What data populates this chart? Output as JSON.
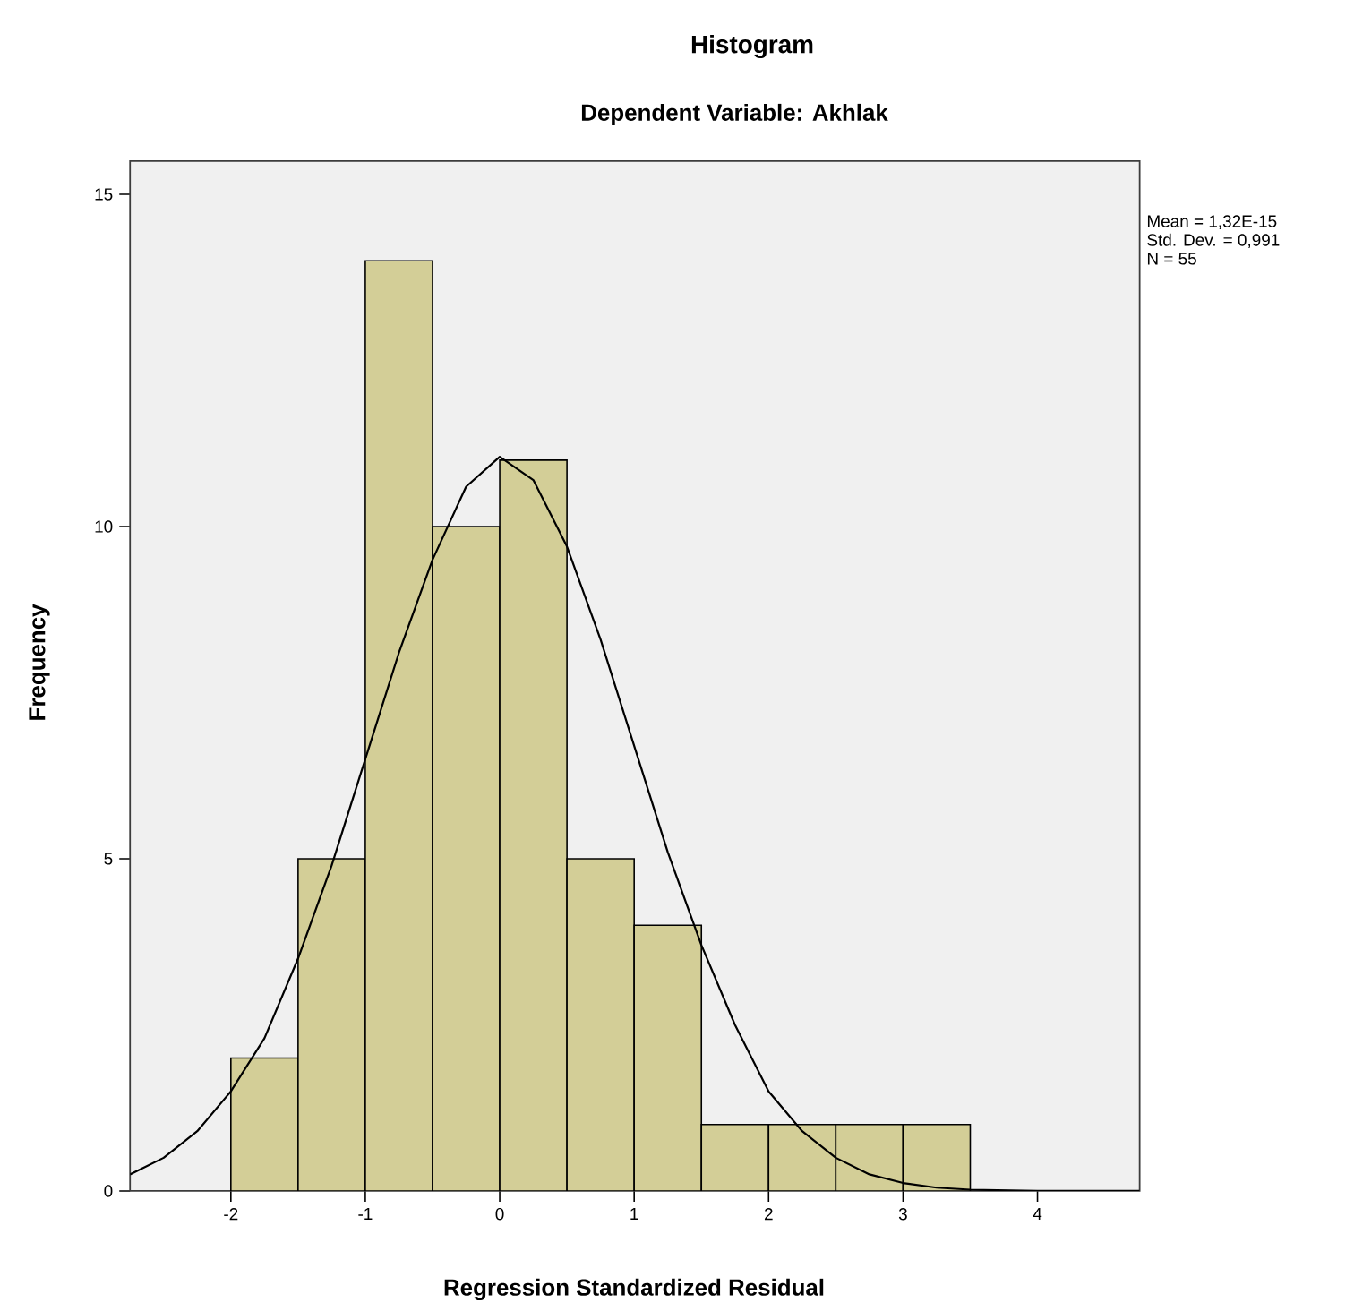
{
  "chart_data": {
    "type": "histogram",
    "title": "Histogram",
    "subtitle": "Dependent Variable: Akhlak",
    "xlabel": "Regression Standardized Residual",
    "ylabel": "Frequency",
    "bins": [
      -2,
      -1.5,
      -1,
      -0.5,
      0,
      0.5,
      1,
      1.5,
      2,
      2.5,
      3,
      3.5
    ],
    "values": [
      2,
      5,
      14,
      10,
      11,
      5,
      4,
      1,
      1,
      1,
      1
    ],
    "color": "#d3ce97",
    "series": [
      {
        "type": "line",
        "color": "#000000",
        "x": [
          -2.75,
          -2.5,
          -2.25,
          -2,
          -1.75,
          -1.5,
          -1.25,
          -1,
          -0.75,
          -0.5,
          -0.25,
          0,
          0.25,
          0.5,
          0.75,
          1,
          1.25,
          1.5,
          1.75,
          2,
          2.25,
          2.5,
          2.75,
          3,
          3.25,
          3.5,
          4,
          4.76
        ],
        "values": [
          0.25,
          0.5,
          0.9,
          1.5,
          2.3,
          3.5,
          4.9,
          6.5,
          8.1,
          9.5,
          10.6,
          11.05,
          10.7,
          9.7,
          8.3,
          6.7,
          5.1,
          3.7,
          2.5,
          1.5,
          0.9,
          0.5,
          0.25,
          0.12,
          0.05,
          0.02,
          0,
          0
        ]
      }
    ],
    "xlim": [
      -2.75,
      4.76
    ],
    "ylim": [
      0,
      15.5
    ],
    "xticks": [
      -2,
      -1,
      0,
      1,
      2,
      3,
      4
    ],
    "yticks": [
      0,
      5,
      10,
      15
    ],
    "grid": false,
    "marker": "none",
    "line_style": "solid",
    "annotations": [
      "Mean = 1,32E-15",
      "Std. Dev. = 0,991",
      "N = 55"
    ]
  }
}
